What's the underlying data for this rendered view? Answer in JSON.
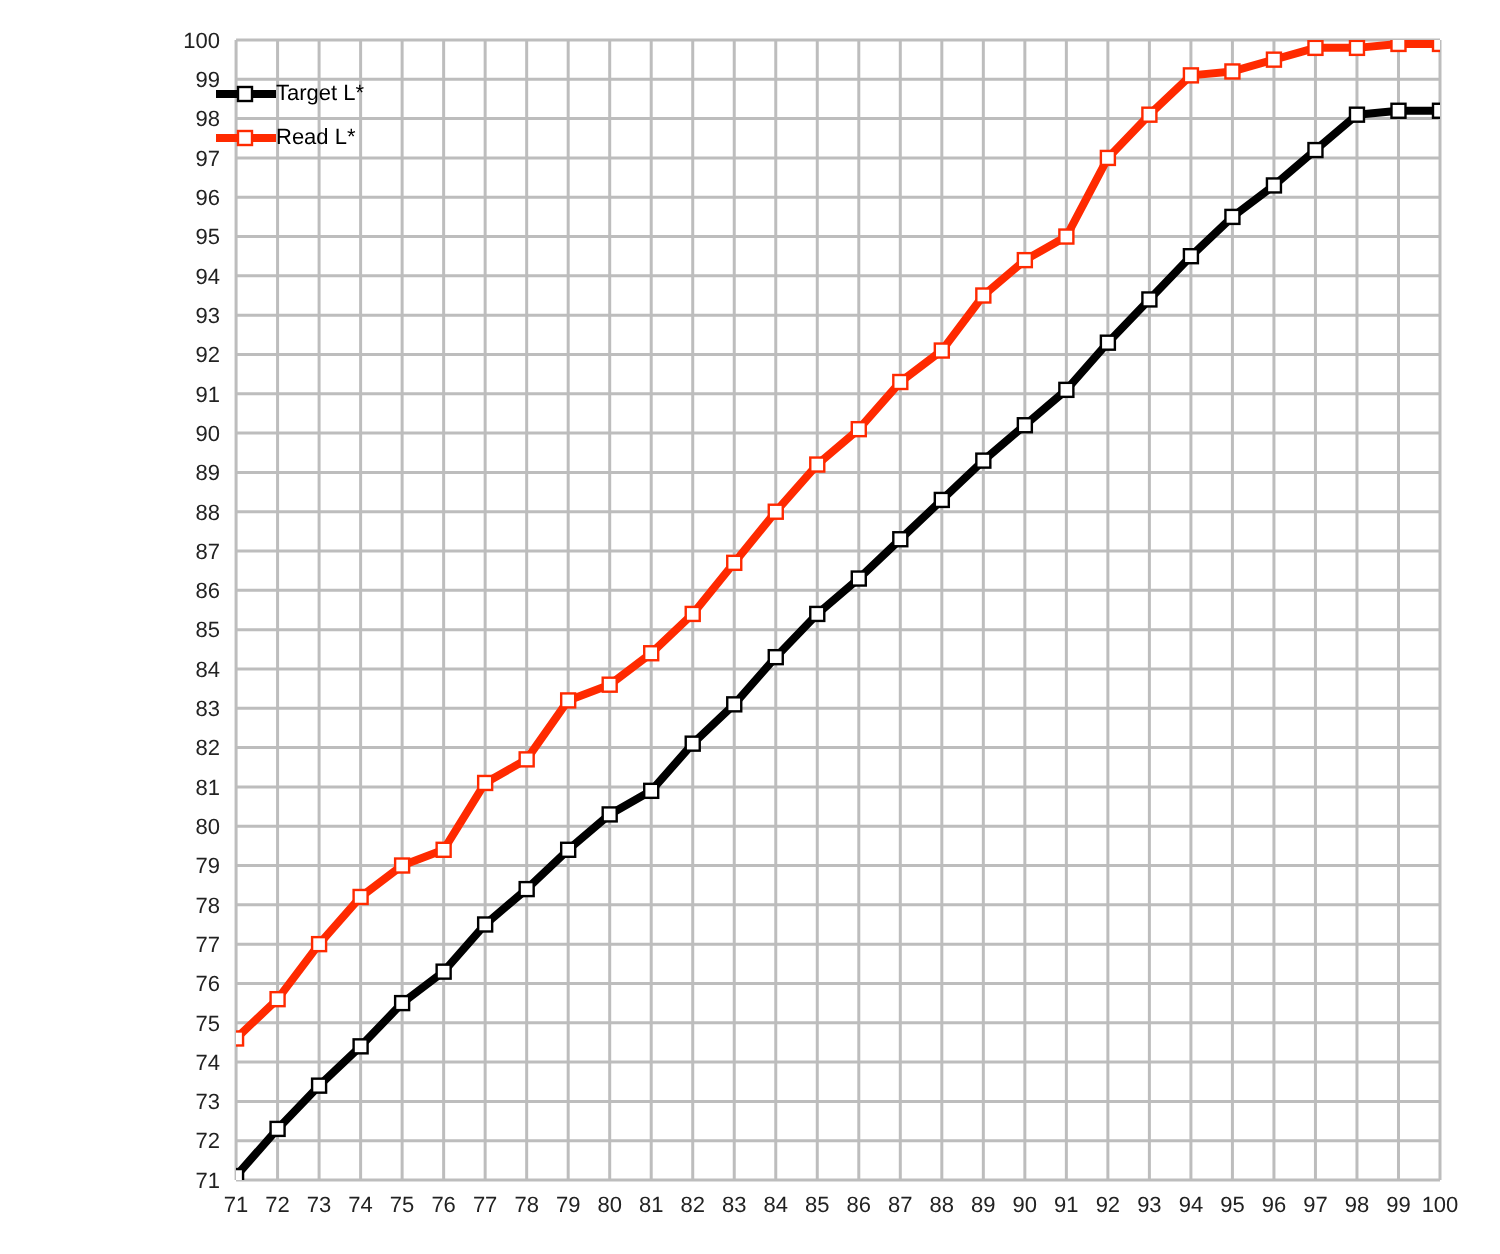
{
  "chart_data": {
    "type": "line",
    "x": [
      71,
      72,
      73,
      74,
      75,
      76,
      77,
      78,
      79,
      80,
      81,
      82,
      83,
      84,
      85,
      86,
      87,
      88,
      89,
      90,
      91,
      92,
      93,
      94,
      95,
      96,
      97,
      98,
      99,
      100
    ],
    "series": [
      {
        "name": "Target L*",
        "color": "#000000",
        "values": [
          71.1,
          72.3,
          73.4,
          74.4,
          75.5,
          76.3,
          77.5,
          78.4,
          79.4,
          80.3,
          80.9,
          82.1,
          83.1,
          84.3,
          85.4,
          86.3,
          87.3,
          88.3,
          89.3,
          90.2,
          91.1,
          92.3,
          93.4,
          94.5,
          95.5,
          96.3,
          97.2,
          98.1,
          98.2,
          98.2
        ]
      },
      {
        "name": "Read L*",
        "color": "#ff2a00",
        "values": [
          74.6,
          75.6,
          77.0,
          78.2,
          79.0,
          79.4,
          81.1,
          81.7,
          83.2,
          83.6,
          84.4,
          85.4,
          86.7,
          88.0,
          89.2,
          90.1,
          91.3,
          92.1,
          93.5,
          94.4,
          95.0,
          97.0,
          98.1,
          99.1,
          99.2,
          99.5,
          99.8,
          99.8,
          99.9,
          99.9
        ]
      }
    ],
    "xlim": [
      71,
      100
    ],
    "xticks": [
      71,
      72,
      73,
      74,
      75,
      76,
      77,
      78,
      79,
      80,
      81,
      82,
      83,
      84,
      85,
      86,
      87,
      88,
      89,
      90,
      91,
      92,
      93,
      94,
      95,
      96,
      97,
      98,
      99,
      100
    ],
    "ylim": [
      71,
      100
    ],
    "yticks": [
      71,
      72,
      73,
      74,
      75,
      76,
      77,
      78,
      79,
      80,
      81,
      82,
      83,
      84,
      85,
      86,
      87,
      88,
      89,
      90,
      91,
      92,
      93,
      94,
      95,
      96,
      97,
      98,
      99,
      100
    ],
    "grid": true,
    "legend": "top left",
    "marker": "square",
    "line_style": "solid"
  }
}
